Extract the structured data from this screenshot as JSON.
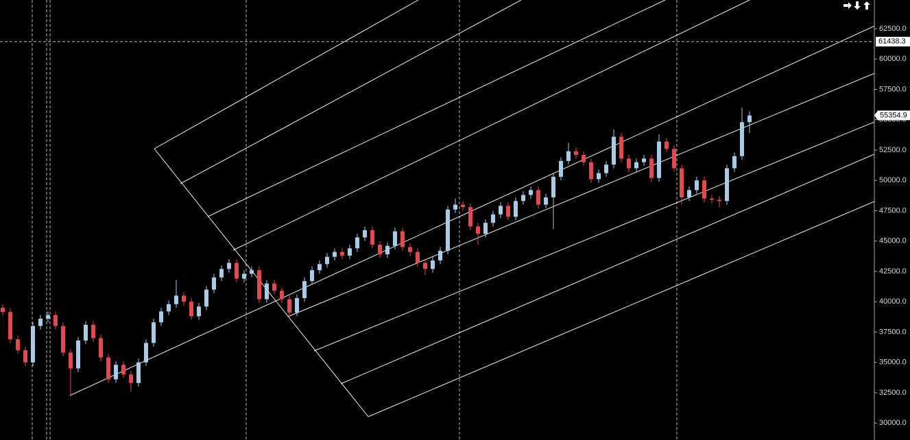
{
  "chart_data": {
    "type": "candlestick",
    "open": [
      39500,
      39150,
      36900,
      36000,
      35000,
      38000,
      38600,
      38900,
      38000,
      35800,
      34500,
      36800,
      38100,
      37000,
      35400,
      33600,
      34800,
      34000,
      33300,
      35000,
      36600,
      38300,
      39200,
      39800,
      40500,
      40000,
      38800,
      39600,
      41000,
      42000,
      42700,
      43200,
      41900,
      42300,
      42600,
      40200,
      41500,
      40900,
      40200,
      39100,
      40300,
      41700,
      42600,
      43100,
      43700,
      44100,
      43800,
      44400,
      45300,
      45900,
      44700,
      43900,
      44600,
      45800,
      44500,
      44100,
      43200,
      42700,
      43400,
      44200,
      47600,
      48000,
      47800,
      46200,
      45600,
      46500,
      47200,
      47900,
      47000,
      48300,
      48800,
      49200,
      48000,
      48600,
      50300,
      51600,
      52400,
      52100,
      51500,
      50100,
      50600,
      51300,
      53600,
      51800,
      51000,
      51500,
      51800,
      50200,
      53200,
      52600,
      51000,
      48600,
      49200,
      50000,
      48500,
      48400,
      48300,
      51000,
      52000,
      54800
    ],
    "high": [
      39800,
      39450,
      37200,
      36300,
      38300,
      38900,
      39200,
      39200,
      38300,
      36100,
      37100,
      38400,
      38400,
      37300,
      35700,
      35100,
      35100,
      34300,
      35300,
      36900,
      38600,
      39500,
      40100,
      41800,
      40800,
      40300,
      39900,
      41300,
      42300,
      43000,
      43500,
      43500,
      42600,
      42900,
      42900,
      41800,
      41800,
      41200,
      40500,
      40600,
      42000,
      42900,
      43400,
      44000,
      44400,
      44400,
      44700,
      45600,
      46200,
      46200,
      45000,
      44900,
      46100,
      46100,
      44800,
      44400,
      43500,
      43700,
      44500,
      47900,
      48500,
      48300,
      48100,
      46500,
      46800,
      47500,
      48200,
      48200,
      48600,
      49100,
      49500,
      49500,
      48900,
      50600,
      51900,
      53100,
      52700,
      52400,
      51800,
      50900,
      51600,
      54200,
      53900,
      52100,
      51800,
      52100,
      52100,
      53800,
      53500,
      52900,
      51300,
      49500,
      50300,
      50300,
      48800,
      48700,
      51300,
      52300,
      56000,
      55700
    ],
    "low": [
      38850,
      36600,
      35700,
      34700,
      34700,
      37700,
      38300,
      37700,
      35500,
      32300,
      34200,
      36500,
      36700,
      35100,
      33300,
      33300,
      33700,
      32600,
      33000,
      34700,
      36300,
      38000,
      38900,
      39500,
      39700,
      38500,
      38500,
      39300,
      40700,
      41700,
      42400,
      41600,
      41600,
      42000,
      39900,
      39900,
      40600,
      39900,
      38800,
      38800,
      40000,
      41400,
      42300,
      42800,
      43400,
      43500,
      43500,
      44100,
      45000,
      44400,
      43600,
      43600,
      44300,
      44200,
      43800,
      42900,
      42200,
      42400,
      43100,
      43900,
      47300,
      47500,
      45900,
      44700,
      45300,
      46200,
      46900,
      46700,
      46700,
      48000,
      48500,
      47700,
      47700,
      46000,
      50000,
      51300,
      51800,
      51200,
      49800,
      49800,
      50300,
      51000,
      51500,
      50700,
      50700,
      51200,
      49900,
      49900,
      52300,
      50700,
      48000,
      48300,
      48900,
      48200,
      48100,
      47800,
      48000,
      50700,
      51700,
      53900
    ],
    "close": [
      39150,
      36900,
      36000,
      35000,
      38000,
      38600,
      38900,
      38000,
      35800,
      34500,
      36800,
      38100,
      37000,
      35400,
      33600,
      34800,
      34000,
      33300,
      35000,
      36600,
      38300,
      39200,
      39800,
      40500,
      40000,
      38800,
      39600,
      41000,
      42000,
      42700,
      43200,
      41900,
      42300,
      42600,
      40200,
      41500,
      40900,
      40200,
      39100,
      40300,
      41700,
      42600,
      43100,
      43700,
      44100,
      43800,
      44400,
      45300,
      45900,
      44700,
      43900,
      44600,
      45800,
      44500,
      44100,
      43200,
      42700,
      43400,
      44200,
      47600,
      48000,
      47800,
      46200,
      45600,
      46500,
      47200,
      47900,
      47000,
      48300,
      48800,
      49200,
      48000,
      48600,
      50300,
      51600,
      52400,
      52100,
      51500,
      50100,
      50600,
      51300,
      53600,
      51800,
      51000,
      51500,
      51800,
      50200,
      53200,
      52600,
      51000,
      48600,
      49200,
      50000,
      48500,
      48400,
      48300,
      51000,
      52000,
      54800,
      55350
    ],
    "up_color": "#a8cce8",
    "down_color": "#e04a4f",
    "ylim": [
      28600,
      64870
    ],
    "yticks": [
      {
        "value": 30000,
        "label": "30000.0"
      },
      {
        "value": 32500,
        "label": "32500.0"
      },
      {
        "value": 35000,
        "label": "35000.0"
      },
      {
        "value": 37500,
        "label": "37500.0"
      },
      {
        "value": 40000,
        "label": "40000.0"
      },
      {
        "value": 42500,
        "label": "42500.0"
      },
      {
        "value": 45000,
        "label": "45000.0"
      },
      {
        "value": 47500,
        "label": "47500.0"
      },
      {
        "value": 50000,
        "label": "50000.0"
      },
      {
        "value": 52500,
        "label": "52500.0"
      },
      {
        "value": 55000,
        "label": "55000.0"
      },
      {
        "value": 57500,
        "label": "57500.0"
      },
      {
        "value": 60000,
        "label": "60000.0"
      },
      {
        "value": 62500,
        "label": "62500.0"
      }
    ],
    "crosshair": 61438.3,
    "last_price": 55354.9
  }
}
